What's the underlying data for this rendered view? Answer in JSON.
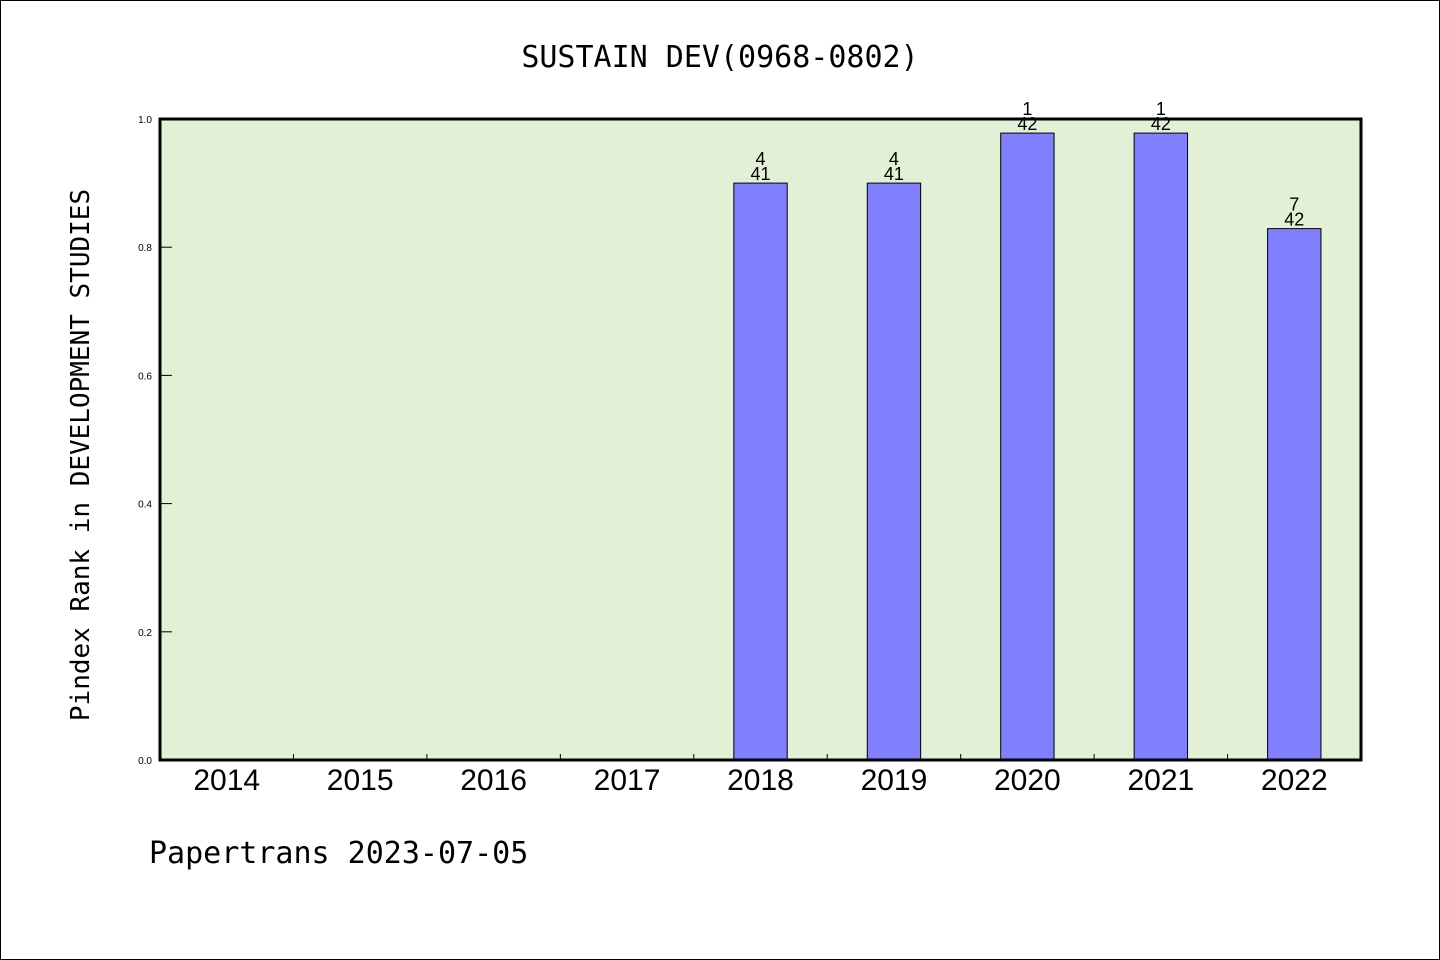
{
  "chart_data": {
    "type": "bar",
    "title": "SUSTAIN DEV(0968-0802)",
    "xlabel": "",
    "ylabel": "Pindex Rank in DEVELOPMENT STUDIES",
    "categories": [
      "2014",
      "2015",
      "2016",
      "2017",
      "2018",
      "2019",
      "2020",
      "2021",
      "2022"
    ],
    "values": [
      null,
      null,
      null,
      null,
      0.9,
      0.9,
      0.978,
      0.978,
      0.829
    ],
    "bar_labels": [
      {
        "rank": "",
        "total": ""
      },
      {
        "rank": "",
        "total": ""
      },
      {
        "rank": "",
        "total": ""
      },
      {
        "rank": "",
        "total": ""
      },
      {
        "rank": "4",
        "total": "41"
      },
      {
        "rank": "4",
        "total": "41"
      },
      {
        "rank": "1",
        "total": "42"
      },
      {
        "rank": "1",
        "total": "42"
      },
      {
        "rank": "7",
        "total": "42"
      }
    ],
    "ylim": [
      0.0,
      1.0
    ],
    "yticks": [
      "0.0",
      "0.2",
      "0.4",
      "0.6",
      "0.8",
      "1.0"
    ],
    "grid": false,
    "colors": {
      "plot_background": "#e2f0d6",
      "bar_fill": "#8080ff",
      "bar_edge": "#000000"
    }
  },
  "footer": {
    "text": "Papertrans 2023-07-05"
  }
}
